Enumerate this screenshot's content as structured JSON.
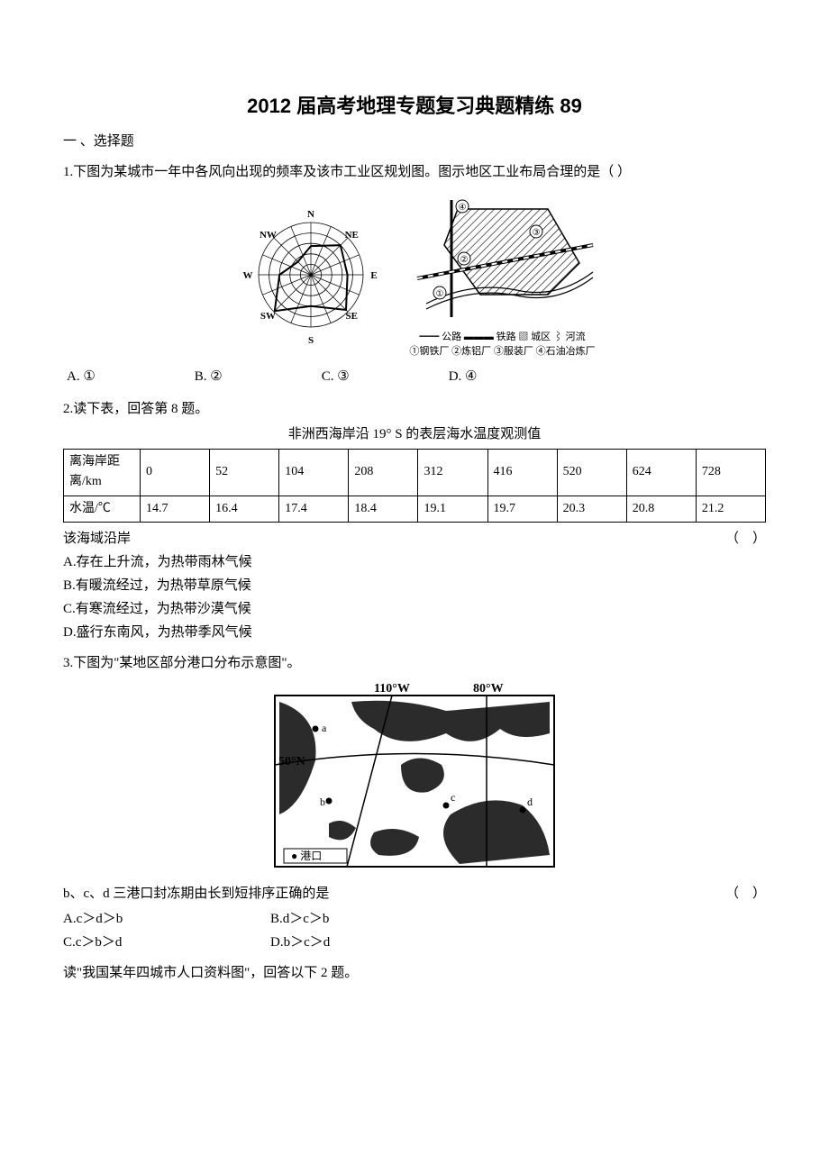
{
  "title": "2012 届高考地理专题复习典题精练 89",
  "section1": "一  、选择题",
  "q1": {
    "text": "1.下图为某城市一年中各风向出现的频率及该市工业区规划图。图示地区工业布局合理的是（    ）",
    "rose": {
      "labels": [
        "N",
        "NE",
        "E",
        "SE",
        "S",
        "SW",
        "W",
        "NW"
      ],
      "values": [
        0.55,
        0.8,
        0.7,
        0.95,
        0.6,
        0.98,
        0.6,
        0.35
      ],
      "stroke": "#000",
      "rings": 5
    },
    "map_legend_line1": "━━ 公路  ▬▬▬ 铁路  ▨ 城区  ⌇ 河流",
    "map_legend_line2": "①钢铁厂 ②炼铝厂 ③服装厂 ④石油冶炼厂",
    "opts": {
      "a": "A. ①",
      "b": "B. ②",
      "c": "C. ③",
      "d": "D. ④"
    }
  },
  "q2": {
    "lead": "2.读下表，回答第 8 题。",
    "caption": "非洲西海岸沿 19° S 的表层海水温度观测值",
    "row1_label": "离海岸距离/km",
    "row2_label": "水温/℃",
    "cols": [
      "0",
      "52",
      "104",
      "208",
      "312",
      "416",
      "520",
      "624",
      "728"
    ],
    "temps": [
      "14.7",
      "16.4",
      "17.4",
      "18.4",
      "19.1",
      "19.7",
      "20.3",
      "20.8",
      "21.2"
    ],
    "stem": "该海域沿岸",
    "blank": "（    ）",
    "A": "A.存在上升流，为热带雨林气候",
    "B": "B.有暖流经过，为热带草原气候",
    "C": "C.有寒流经过，为热带沙漠气候",
    "D": "D.盛行东南风，为热带季风气候"
  },
  "q3": {
    "lead": "3.下图为\"某地区部分港口分布示意图\"。",
    "lon1": "110°W",
    "lon2": "80°W",
    "lat": "50°N",
    "port_label": "● 港口",
    "stem": "b、c、d 三港口封冻期由长到短排序正确的是",
    "blank": "（    ）",
    "A": "A.c＞d＞b",
    "B": "B.d＞c＞b",
    "C": "C.c＞b＞d",
    "D": "D.b＞c＞d"
  },
  "tail": "读\"我国某年四城市人口资料图\"，回答以下 2 题。"
}
